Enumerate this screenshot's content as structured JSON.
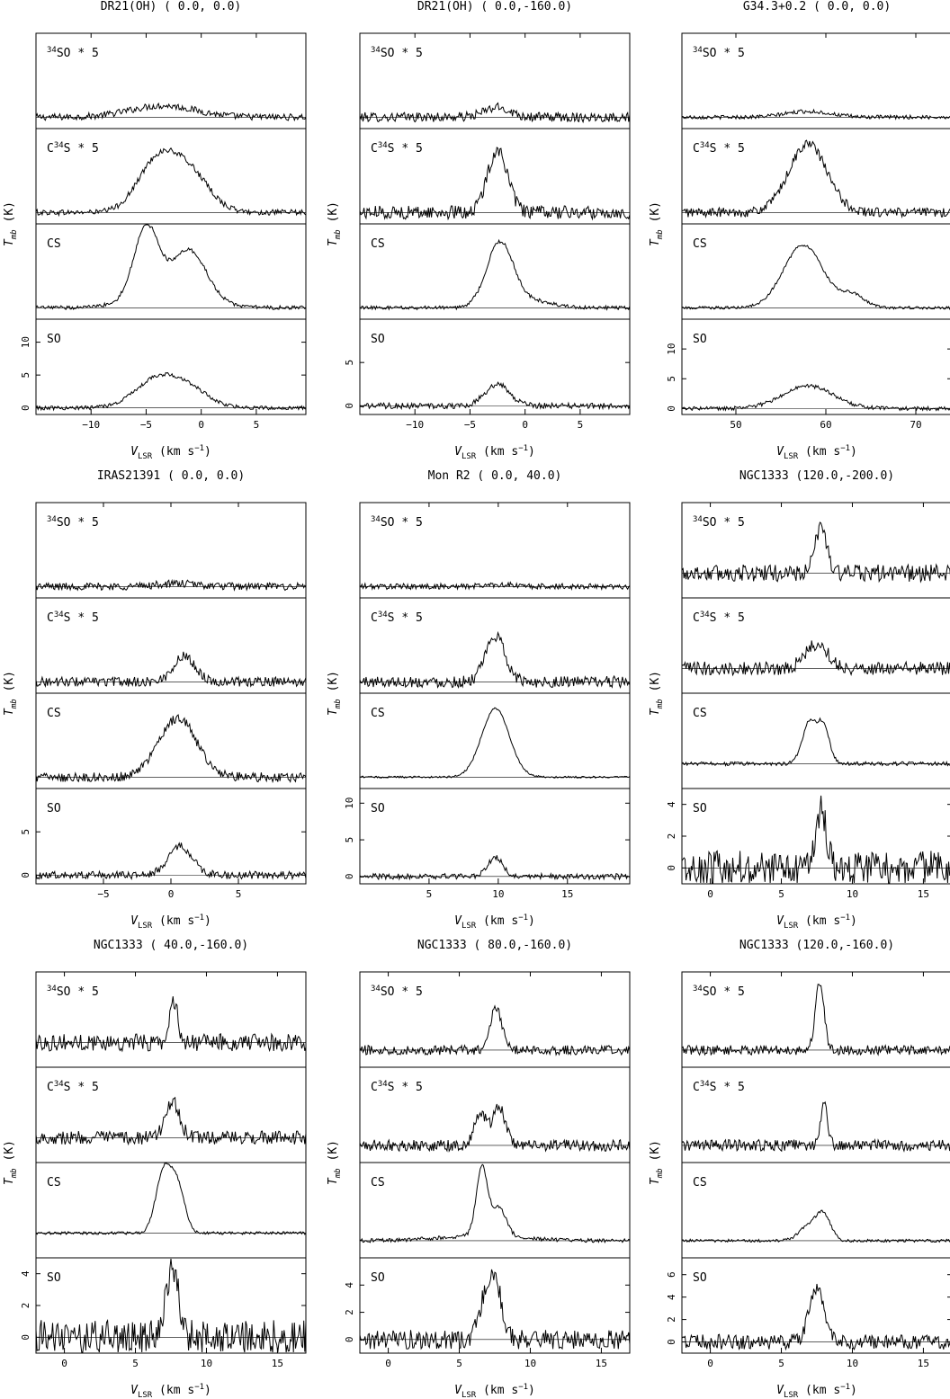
{
  "chart_data": [
    {
      "type": "line",
      "title": "DR21(OH)  (  0.0,   0.0)",
      "xlabel": "V_LSR  (km s^-1)",
      "ylabel": "T_mb  (K)",
      "xlim": [
        -15,
        9.5
      ],
      "xticks": [
        -10,
        -5,
        0,
        5
      ],
      "ylim": [
        -1,
        13.5
      ],
      "yticks": [
        0,
        5,
        10
      ],
      "show_ylabel": true,
      "baseline_frac": 0.12,
      "lines": [
        {
          "label": "34SO * 5",
          "noise": 0.035,
          "comps": [
            {
              "v": -3.5,
              "a": 0.12,
              "s": 3.0
            }
          ]
        },
        {
          "label": "C34S * 5",
          "noise": 0.03,
          "comps": [
            {
              "v": -4.0,
              "a": 0.52,
              "s": 1.8
            },
            {
              "v": -1.0,
              "a": 0.38,
              "s": 1.8
            }
          ]
        },
        {
          "label": "CS",
          "noise": 0.02,
          "comps": [
            {
              "v": -5.0,
              "a": 0.72,
              "s": 1.1
            },
            {
              "v": -1.0,
              "a": 0.46,
              "s": 1.5
            },
            {
              "v": -3.0,
              "a": 0.18,
              "s": 3.0
            }
          ]
        },
        {
          "label": "SO",
          "noise": 0.02,
          "comps": [
            {
              "v": -4.0,
              "a": 4.3,
              "s": 2.0
            },
            {
              "v": -1.0,
              "a": 2.4,
              "s": 1.8
            }
          ],
          "data_units": true
        }
      ]
    },
    {
      "type": "line",
      "title": "DR21(OH)  (  0.0,-160.0)",
      "xlabel": "V_LSR  (km s^-1)",
      "ylabel": "T_mb  (K)",
      "xlim": [
        -15,
        9.5
      ],
      "xticks": [
        -10,
        -5,
        0,
        5
      ],
      "ylim": [
        -1,
        10
      ],
      "yticks": [
        0,
        5
      ],
      "show_ylabel": true,
      "baseline_frac": 0.12,
      "lines": [
        {
          "label": "34SO * 5",
          "noise": 0.05,
          "comps": [
            {
              "v": -2.5,
              "a": 0.1,
              "s": 1.2
            }
          ]
        },
        {
          "label": "C34S * 5",
          "noise": 0.07,
          "comps": [
            {
              "v": -2.5,
              "a": 0.66,
              "s": 0.9
            }
          ]
        },
        {
          "label": "CS",
          "noise": 0.02,
          "comps": [
            {
              "v": -2.3,
              "a": 0.66,
              "s": 1.2
            },
            {
              "v": 0.2,
              "a": 0.08,
              "s": 2.0
            }
          ]
        },
        {
          "label": "SO",
          "noise": 0.03,
          "comps": [
            {
              "v": -2.5,
              "a": 2.5,
              "s": 1.1
            }
          ],
          "data_units": true
        }
      ]
    },
    {
      "type": "line",
      "title": "G34.3+0.2  (  0.0,   0.0)",
      "xlabel": "V_LSR  (km s^-1)",
      "ylabel": "T_mb  (K)",
      "xlim": [
        44,
        74
      ],
      "xticks": [
        50,
        60,
        70
      ],
      "ylim": [
        -1,
        15
      ],
      "yticks": [
        0,
        5,
        10
      ],
      "show_ylabel": true,
      "baseline_frac": 0.12,
      "lines": [
        {
          "label": "34SO * 5",
          "noise": 0.02,
          "comps": [
            {
              "v": 58,
              "a": 0.06,
              "s": 2.5
            }
          ]
        },
        {
          "label": "C34S * 5",
          "noise": 0.05,
          "comps": [
            {
              "v": 58,
              "a": 0.72,
              "s": 2.1
            }
          ]
        },
        {
          "label": "CS",
          "noise": 0.015,
          "comps": [
            {
              "v": 57.5,
              "a": 0.66,
              "s": 2.2
            },
            {
              "v": 63,
              "a": 0.13,
              "s": 1.3
            }
          ]
        },
        {
          "label": "SO",
          "noise": 0.02,
          "comps": [
            {
              "v": 58,
              "a": 3.8,
              "s": 2.8
            }
          ],
          "data_units": true
        }
      ]
    },
    {
      "type": "line",
      "title": "IRAS21391  (  0.0,   0.0)",
      "xlabel": "V_LSR  (km s^-1)",
      "ylabel": "T_mb  (K)",
      "xlim": [
        -10,
        10
      ],
      "xticks": [
        -5,
        0,
        5
      ],
      "ylim": [
        -1,
        10
      ],
      "yticks": [
        0,
        5
      ],
      "show_ylabel": true,
      "baseline_frac": 0.12,
      "lines": [
        {
          "label": "34SO * 5",
          "noise": 0.04,
          "comps": [
            {
              "v": 0.5,
              "a": 0.03,
              "s": 1.5
            }
          ]
        },
        {
          "label": "C34S * 5",
          "noise": 0.05,
          "comps": [
            {
              "v": 1.0,
              "a": 0.27,
              "s": 0.8
            }
          ]
        },
        {
          "label": "CS",
          "noise": 0.05,
          "comps": [
            {
              "v": 0.5,
              "a": 0.62,
              "s": 1.4
            }
          ]
        },
        {
          "label": "SO",
          "noise": 0.04,
          "comps": [
            {
              "v": 0.7,
              "a": 3.3,
              "s": 0.9
            }
          ],
          "data_units": true
        }
      ]
    },
    {
      "type": "line",
      "title": "Mon R2  (  0.0, 40.0)",
      "xlabel": "V_LSR  (km s^-1)",
      "ylabel": "T_mb  (K)",
      "xlim": [
        0,
        19.5
      ],
      "xticks": [
        5,
        10,
        15
      ],
      "ylim": [
        -1,
        12
      ],
      "yticks": [
        0,
        5,
        10
      ],
      "show_ylabel": true,
      "baseline_frac": 0.12,
      "lines": [
        {
          "label": "34SO * 5",
          "noise": 0.03,
          "comps": [
            {
              "v": 10,
              "a": 0.02,
              "s": 1.0
            }
          ]
        },
        {
          "label": "C34S * 5",
          "noise": 0.06,
          "comps": [
            {
              "v": 9.8,
              "a": 0.48,
              "s": 0.7
            }
          ]
        },
        {
          "label": "CS",
          "noise": 0.01,
          "comps": [
            {
              "v": 9.8,
              "a": 0.72,
              "s": 1.0
            }
          ]
        },
        {
          "label": "SO",
          "noise": 0.03,
          "comps": [
            {
              "v": 9.8,
              "a": 2.6,
              "s": 0.55
            }
          ],
          "data_units": true
        }
      ]
    },
    {
      "type": "line",
      "title": "NGC1333  (120.0,-200.0)",
      "xlabel": "V_LSR  (km s^-1)",
      "ylabel": "T_mb  (K)",
      "xlim": [
        -2,
        17
      ],
      "xticks": [
        0,
        5,
        10,
        15
      ],
      "ylim": [
        -1,
        5
      ],
      "yticks": [
        0,
        2,
        4
      ],
      "show_ylabel": true,
      "baseline_frac": 0.26,
      "lines": [
        {
          "label": "34SO * 5",
          "noise": 0.09,
          "comps": [
            {
              "v": 7.8,
              "a": 0.5,
              "s": 0.4
            }
          ]
        },
        {
          "label": "C34S * 5",
          "noise": 0.07,
          "comps": [
            {
              "v": 7.5,
              "a": 0.25,
              "s": 0.8
            }
          ]
        },
        {
          "label": "CS",
          "noise": 0.02,
          "comps": [
            {
              "v": 7.0,
              "a": 0.45,
              "s": 0.5
            },
            {
              "v": 8.0,
              "a": 0.38,
              "s": 0.4
            }
          ]
        },
        {
          "label": "SO",
          "noise": 0.18,
          "comps": [
            {
              "v": 7.8,
              "a": 3.6,
              "s": 0.35
            }
          ],
          "data_units": true
        }
      ]
    },
    {
      "type": "line",
      "title": "NGC1333  ( 40.0,-160.0)",
      "xlabel": "V_LSR  (km s^-1)",
      "ylabel": "T_mb  (K)",
      "xlim": [
        -2,
        17
      ],
      "xticks": [
        0,
        5,
        10,
        15
      ],
      "ylim": [
        -1,
        5
      ],
      "yticks": [
        0,
        2,
        4
      ],
      "show_ylabel": true,
      "baseline_frac": 0.26,
      "lines": [
        {
          "label": "34SO * 5",
          "noise": 0.09,
          "comps": [
            {
              "v": 7.7,
              "a": 0.42,
              "s": 0.3
            }
          ]
        },
        {
          "label": "C34S * 5",
          "noise": 0.07,
          "comps": [
            {
              "v": 7.6,
              "a": 0.38,
              "s": 0.5
            }
          ]
        },
        {
          "label": "CS",
          "noise": 0.015,
          "comps": [
            {
              "v": 7.0,
              "a": 0.65,
              "s": 0.55
            },
            {
              "v": 8.0,
              "a": 0.45,
              "s": 0.5
            }
          ]
        },
        {
          "label": "SO",
          "noise": 0.18,
          "comps": [
            {
              "v": 7.6,
              "a": 4.7,
              "s": 0.4
            }
          ],
          "data_units": true
        }
      ]
    },
    {
      "type": "line",
      "title": "NGC1333  ( 80.0,-160.0)",
      "xlabel": "V_LSR  (km s^-1)",
      "ylabel": "T_mb  (K)",
      "xlim": [
        -2,
        17
      ],
      "xticks": [
        0,
        5,
        10,
        15
      ],
      "ylim": [
        -1,
        6
      ],
      "yticks": [
        0,
        2,
        4
      ],
      "show_ylabel": true,
      "baseline_frac": 0.18,
      "lines": [
        {
          "label": "34SO * 5",
          "noise": 0.05,
          "comps": [
            {
              "v": 7.6,
              "a": 0.45,
              "s": 0.4
            }
          ]
        },
        {
          "label": "C34S * 5",
          "noise": 0.06,
          "comps": [
            {
              "v": 6.5,
              "a": 0.35,
              "s": 0.4
            },
            {
              "v": 7.8,
              "a": 0.4,
              "s": 0.45
            }
          ]
        },
        {
          "label": "CS",
          "noise": 0.02,
          "comps": [
            {
              "v": 6.6,
              "a": 0.72,
              "s": 0.4
            },
            {
              "v": 7.8,
              "a": 0.3,
              "s": 0.5
            },
            {
              "v": 6.5,
              "a": 0.05,
              "s": 3
            }
          ]
        },
        {
          "label": "SO",
          "noise": 0.1,
          "comps": [
            {
              "v": 6.8,
              "a": 2.8,
              "s": 0.45
            },
            {
              "v": 7.6,
              "a": 3.7,
              "s": 0.45
            }
          ],
          "data_units": true
        }
      ]
    },
    {
      "type": "line",
      "title": "NGC1333  (120.0,-160.0)",
      "xlabel": "V_LSR  (km s^-1)",
      "ylabel": "T_mb  (K)",
      "xlim": [
        -2,
        17
      ],
      "xticks": [
        0,
        5,
        10,
        15
      ],
      "ylim": [
        -1,
        7.5
      ],
      "yticks": [
        0,
        2,
        4,
        6
      ],
      "show_ylabel": true,
      "baseline_frac": 0.18,
      "lines": [
        {
          "label": "34SO * 5",
          "noise": 0.05,
          "comps": [
            {
              "v": 7.7,
              "a": 0.72,
              "s": 0.3
            }
          ]
        },
        {
          "label": "C34S * 5",
          "noise": 0.06,
          "comps": [
            {
              "v": 8.0,
              "a": 0.42,
              "s": 0.25
            }
          ]
        },
        {
          "label": "CS",
          "noise": 0.015,
          "comps": [
            {
              "v": 7.0,
              "a": 0.16,
              "s": 0.7
            },
            {
              "v": 8.0,
              "a": 0.24,
              "s": 0.5
            }
          ]
        },
        {
          "label": "SO",
          "noise": 0.08,
          "comps": [
            {
              "v": 7.5,
              "a": 4.6,
              "s": 0.55
            }
          ],
          "data_units": true
        }
      ]
    }
  ]
}
